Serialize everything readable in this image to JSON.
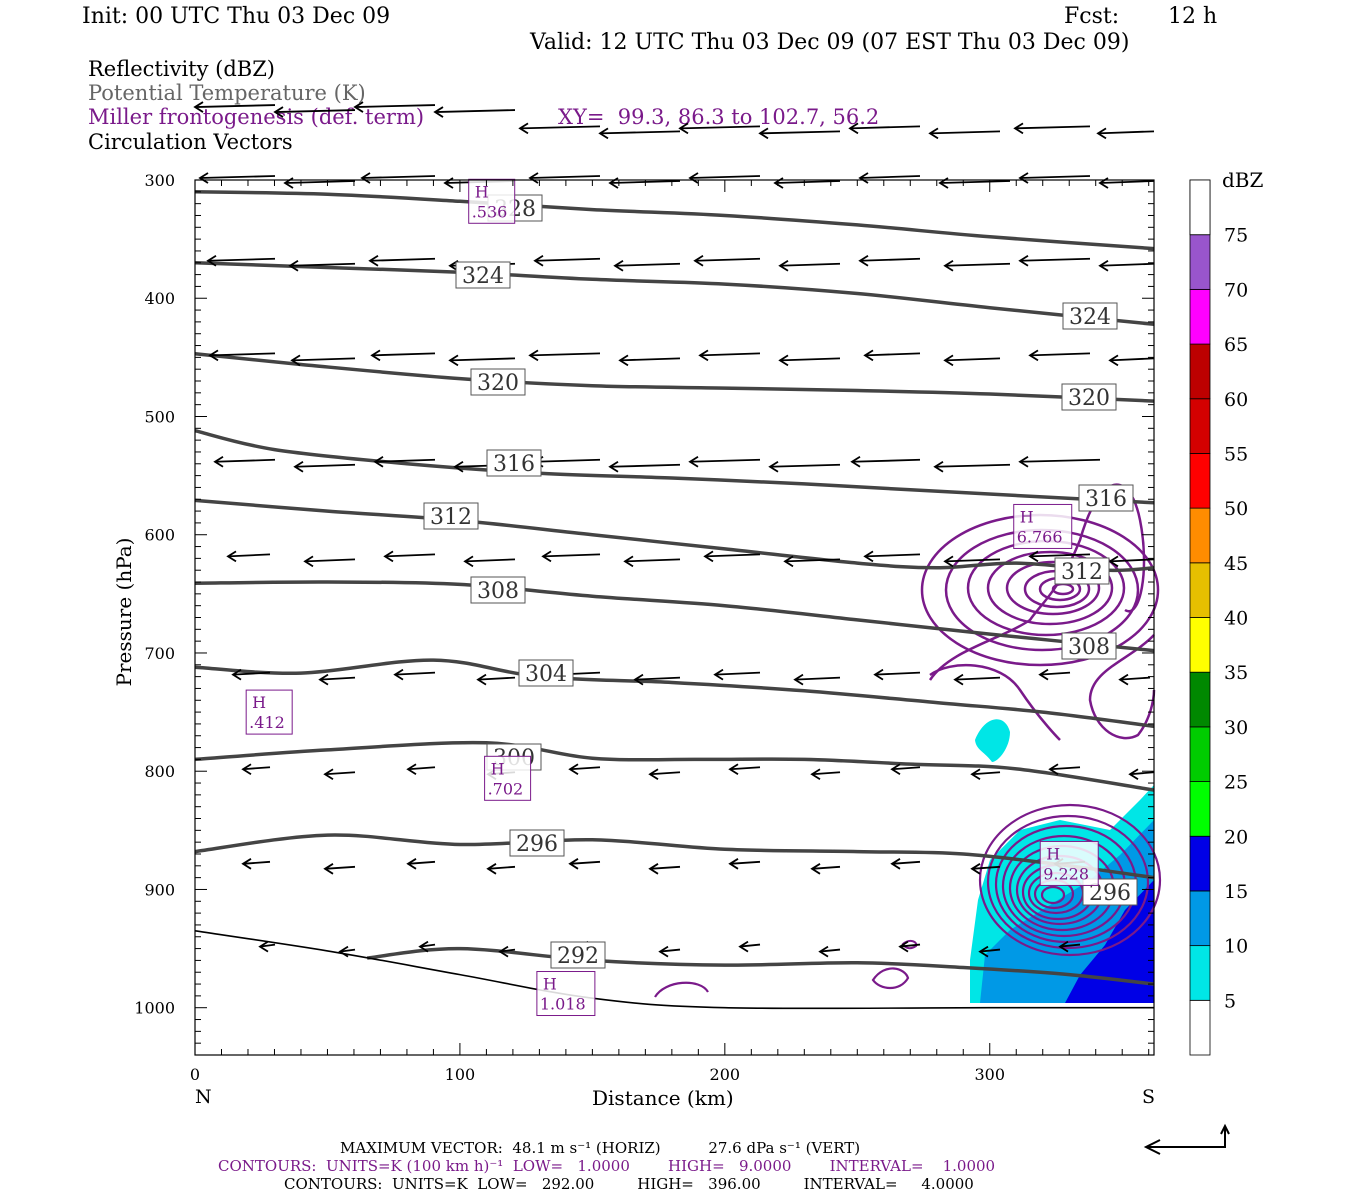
{
  "header": {
    "init": "Init: 00 UTC Thu 03 Dec 09",
    "fcst_label": "Fcst:",
    "fcst_value": "12 h",
    "valid": "Valid: 12 UTC Thu 03 Dec 09 (07 EST Thu 03 Dec 09)"
  },
  "legend": {
    "line1": "Reflectivity (dBZ)",
    "line2": "Potential Temperature (K)",
    "line3": "Miller frontogenesis (def. term)",
    "xy": "XY=  99.3, 86.3 to 102.7, 56.2",
    "line4": "Circulation Vectors"
  },
  "footer": {
    "max_vector": "MAXIMUM VECTOR:  48.1 m s⁻¹ (HORIZ)          27.6 dPa s⁻¹ (VERT)",
    "contours1": "CONTOURS:  UNITS=K (100 km h)⁻¹  LOW=   1.0000        HIGH=   9.0000        INTERVAL=    1.0000",
    "contours2": "CONTOURS:  UNITS=K  LOW=   292.00         HIGH=   396.00         INTERVAL=     4.0000"
  },
  "colors": {
    "theta": "#444444",
    "frontogenesis": "#7a1a8a",
    "vectors": "#000000",
    "terrain": "#000000"
  },
  "chart_data": {
    "type": "cross-section",
    "xlabel": "Distance (km)",
    "ylabel": "Pressure (hPa)",
    "x_end_labels": {
      "left": "N",
      "right": "S"
    },
    "xlim": [
      0,
      362
    ],
    "ylim": [
      1040,
      300
    ],
    "x_ticks": [
      0,
      100,
      200,
      300
    ],
    "y_ticks": [
      300,
      400,
      500,
      600,
      700,
      800,
      900,
      1000
    ],
    "colorbar": {
      "label": "dBZ",
      "ticks": [
        "5",
        "10",
        "15",
        "20",
        "25",
        "30",
        "35",
        "40",
        "45",
        "50",
        "55",
        "60",
        "65",
        "70",
        "75"
      ],
      "colors": [
        "#00e6e6",
        "#0099e6",
        "#0000e6",
        "#00ff00",
        "#00cc00",
        "#008800",
        "#ffff00",
        "#e6bf00",
        "#ff8c00",
        "#ff0000",
        "#d40000",
        "#bd0000",
        "#ff00ff",
        "#9955cc",
        "#ffffff"
      ]
    },
    "theta_contours": [
      {
        "label": "328",
        "points": [
          [
            0,
            310
          ],
          [
            50,
            312
          ],
          [
            100,
            318
          ],
          [
            150,
            325
          ],
          [
            200,
            330
          ],
          [
            250,
            338
          ],
          [
            300,
            348
          ],
          [
            362,
            358
          ]
        ]
      },
      {
        "label": "324",
        "points": [
          [
            0,
            370
          ],
          [
            50,
            374
          ],
          [
            100,
            378
          ],
          [
            150,
            384
          ],
          [
            200,
            388
          ],
          [
            250,
            396
          ],
          [
            300,
            408
          ],
          [
            362,
            422
          ]
        ]
      },
      {
        "label": "320",
        "points": [
          [
            0,
            447
          ],
          [
            40,
            456
          ],
          [
            100,
            468
          ],
          [
            150,
            474
          ],
          [
            200,
            476
          ],
          [
            250,
            478
          ],
          [
            300,
            481
          ],
          [
            362,
            487
          ]
        ]
      },
      {
        "label": "316",
        "points": [
          [
            0,
            512
          ],
          [
            30,
            528
          ],
          [
            80,
            540
          ],
          [
            130,
            548
          ],
          [
            180,
            552
          ],
          [
            230,
            557
          ],
          [
            270,
            562
          ],
          [
            362,
            573
          ]
        ]
      },
      {
        "label": "312",
        "points": [
          [
            0,
            571
          ],
          [
            50,
            580
          ],
          [
            100,
            588
          ],
          [
            150,
            600
          ],
          [
            200,
            612
          ],
          [
            250,
            624
          ],
          [
            280,
            628
          ],
          [
            310,
            624
          ],
          [
            345,
            630
          ],
          [
            362,
            628
          ]
        ]
      },
      {
        "label": "308",
        "points": [
          [
            0,
            641
          ],
          [
            50,
            640
          ],
          [
            100,
            642
          ],
          [
            150,
            652
          ],
          [
            200,
            660
          ],
          [
            250,
            672
          ],
          [
            300,
            684
          ],
          [
            362,
            698
          ]
        ]
      },
      {
        "label": "304",
        "points": [
          [
            0,
            712
          ],
          [
            40,
            717
          ],
          [
            90,
            706
          ],
          [
            130,
            720
          ],
          [
            180,
            725
          ],
          [
            230,
            732
          ],
          [
            280,
            742
          ],
          [
            320,
            750
          ],
          [
            362,
            762
          ]
        ]
      },
      {
        "label": "300",
        "points": [
          [
            0,
            790
          ],
          [
            50,
            782
          ],
          [
            110,
            776
          ],
          [
            150,
            789
          ],
          [
            190,
            790
          ],
          [
            230,
            790
          ],
          [
            270,
            794
          ],
          [
            310,
            798
          ],
          [
            362,
            816
          ]
        ]
      },
      {
        "label": "296",
        "points": [
          [
            0,
            868
          ],
          [
            50,
            854
          ],
          [
            100,
            862
          ],
          [
            150,
            858
          ],
          [
            200,
            866
          ],
          [
            250,
            868
          ],
          [
            290,
            870
          ],
          [
            330,
            880
          ],
          [
            362,
            890
          ]
        ]
      },
      {
        "label": "292",
        "points": [
          [
            65,
            958
          ],
          [
            100,
            950
          ],
          [
            150,
            960
          ],
          [
            200,
            964
          ],
          [
            250,
            962
          ],
          [
            290,
            966
          ],
          [
            330,
            972
          ],
          [
            362,
            980
          ]
        ]
      }
    ],
    "terrain_line": [
      [
        0,
        935
      ],
      [
        50,
        952
      ],
      [
        100,
        972
      ],
      [
        150,
        992
      ],
      [
        200,
        1000
      ],
      [
        300,
        1000
      ],
      [
        362,
        1000
      ]
    ],
    "frontogenesis_maxima": [
      {
        "label": "H",
        "value": ".412",
        "x": 28,
        "y": 750
      },
      {
        "label": "H",
        "value": ".702",
        "x": 118,
        "y": 806
      },
      {
        "label": "H",
        "value": "6.766",
        "x": 320,
        "y": 593
      },
      {
        "label": "H",
        "value": "9.228",
        "x": 330,
        "y": 878
      },
      {
        "label": "H",
        "value": "1.018",
        "x": 140,
        "y": 988
      },
      {
        "label": "H",
        "value": ".536",
        "x": 112,
        "y": 318
      }
    ]
  }
}
